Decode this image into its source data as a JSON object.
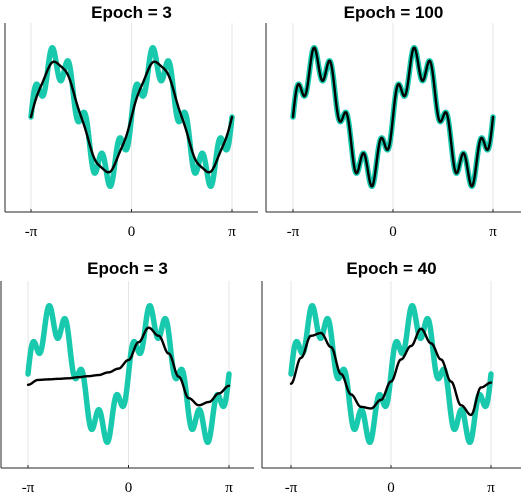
{
  "chart_data": [
    {
      "type": "line",
      "title": "Epoch = 3",
      "xlim": [
        -3.1416,
        3.1416
      ],
      "x_ticks": [
        -3.1416,
        0,
        3.1416
      ],
      "x_tick_labels": [
        "-π",
        "0",
        "π"
      ],
      "grid": "vertical lines at x ticks",
      "y_ticks_shown": false,
      "target": {
        "color": "#19c9ad",
        "terms": [
          {
            "amp": 1.0,
            "freq": 2
          },
          {
            "amp": 0.3,
            "freq": 12
          }
        ]
      },
      "model": {
        "color": "#000000",
        "terms": [
          {
            "amp": 1.0,
            "freq": 2
          },
          {
            "amp": 0.03,
            "freq": 12
          }
        ]
      },
      "x": [
        -3.1416,
        -2.8274,
        -2.5133,
        -2.1991,
        -1.885,
        -1.5708,
        -1.2566,
        -0.9425,
        -0.6283,
        -0.3142,
        0.0,
        0.3142,
        0.6283,
        0.9425,
        1.2566,
        1.5708,
        1.885,
        2.1991,
        2.5133,
        2.8274,
        3.1416
      ],
      "series": [
        {
          "values": [
            0.0,
            0.89,
            0.94,
            0.57,
            -0.55,
            -0.97,
            -0.56,
            0.56,
            0.97,
            0.56,
            0.0,
            0.59,
            0.97,
            0.56,
            -0.56,
            -0.97,
            -0.57,
            0.56,
            0.97,
            0.59,
            0.0
          ]
        },
        {
          "values": [
            0.0,
            0.59,
            0.95,
            0.95,
            0.59,
            0.0,
            -0.59,
            -0.95,
            -0.95,
            -0.59,
            0.0,
            0.59,
            0.95,
            0.95,
            0.59,
            0.0,
            -0.59,
            -0.95,
            -0.95,
            -0.59,
            0.0
          ]
        }
      ]
    },
    {
      "type": "line",
      "title": "Epoch = 100",
      "xlim": [
        -3.1416,
        3.1416
      ],
      "x_ticks": [
        -3.1416,
        0,
        3.1416
      ],
      "x_tick_labels": [
        "-π",
        "0",
        "π"
      ],
      "grid": "vertical lines at x ticks",
      "y_ticks_shown": false,
      "target": {
        "color": "#19c9ad",
        "terms": [
          {
            "amp": 1.0,
            "freq": 2
          },
          {
            "amp": 0.3,
            "freq": 12
          }
        ]
      },
      "model": {
        "color": "#000000",
        "terms": [
          {
            "amp": 1.0,
            "freq": 2
          },
          {
            "amp": 0.3,
            "freq": 12
          }
        ]
      },
      "x": [
        -3.1416,
        -2.8274,
        -2.5133,
        -2.1991,
        -1.885,
        -1.5708,
        -1.2566,
        -0.9425,
        -0.6283,
        -0.3142,
        0.0,
        0.3142,
        0.6283,
        0.9425,
        1.2566,
        1.5708,
        1.885,
        2.1991,
        2.5133,
        2.8274,
        3.1416
      ],
      "series": [
        {
          "values": [
            0.0,
            0.89,
            0.94,
            0.57,
            -0.55,
            -0.97,
            -0.56,
            0.56,
            0.97,
            0.56,
            0.0,
            0.59,
            0.97,
            0.56,
            -0.56,
            -0.97,
            -0.57,
            0.56,
            0.97,
            0.59,
            0.0
          ]
        },
        {
          "values": [
            0.0,
            0.89,
            0.94,
            0.57,
            -0.55,
            -0.97,
            -0.56,
            0.56,
            0.97,
            0.56,
            0.0,
            0.59,
            0.97,
            0.56,
            -0.56,
            -0.97,
            -0.57,
            0.56,
            0.97,
            0.59,
            0.0
          ]
        }
      ]
    },
    {
      "type": "line",
      "title": "Epoch = 3",
      "xlim": [
        -3.1416,
        3.1416
      ],
      "x_ticks": [
        -3.1416,
        0,
        3.1416
      ],
      "x_tick_labels": [
        "-π",
        "0",
        "π"
      ],
      "grid": "vertical lines at x ticks",
      "y_ticks_shown": false,
      "target": {
        "color": "#19c9ad",
        "terms": [
          {
            "amp": 1.0,
            "freq": 2
          },
          {
            "amp": 0.3,
            "freq": 12
          }
        ]
      },
      "x": [
        -3.1416,
        -2.8274,
        -2.5133,
        -2.1991,
        -1.885,
        -1.5708,
        -1.2566,
        -0.9425,
        -0.6283,
        -0.3142,
        0.0,
        0.3142,
        0.6283,
        0.9425,
        1.2566,
        1.5708,
        1.885,
        2.1991,
        2.5133,
        2.8274,
        3.1416
      ],
      "series": [
        {
          "values": [
            0.0,
            0.89,
            0.94,
            0.57,
            -0.55,
            -0.97,
            -0.56,
            0.56,
            0.97,
            0.56,
            0.0,
            0.59,
            0.97,
            0.56,
            -0.56,
            -0.97,
            -0.57,
            0.56,
            0.97,
            0.59,
            0.0
          ]
        },
        {
          "color": "#000000",
          "values": [
            -0.2,
            -0.11,
            -0.1,
            -0.09,
            -0.08,
            -0.06,
            -0.04,
            -0.02,
            0.03,
            0.1,
            0.26,
            0.59,
            0.86,
            0.71,
            0.38,
            -0.05,
            -0.45,
            -0.58,
            -0.52,
            -0.36,
            -0.22
          ]
        }
      ]
    },
    {
      "type": "line",
      "title": "Epoch = 40",
      "xlim": [
        -3.1416,
        3.1416
      ],
      "x_ticks": [
        -3.1416,
        0,
        3.1416
      ],
      "x_tick_labels": [
        "-π",
        "0",
        "π"
      ],
      "grid": "vertical lines at x ticks",
      "y_ticks_shown": false,
      "target": {
        "color": "#19c9ad",
        "terms": [
          {
            "amp": 1.0,
            "freq": 2
          },
          {
            "amp": 0.3,
            "freq": 12
          }
        ]
      },
      "x": [
        -3.1416,
        -2.8274,
        -2.5133,
        -2.1991,
        -1.885,
        -1.5708,
        -1.2566,
        -0.9425,
        -0.6283,
        -0.3142,
        0.0,
        0.3142,
        0.6283,
        0.9425,
        1.2566,
        1.5708,
        1.885,
        2.1991,
        2.5133,
        2.8274,
        3.1416
      ],
      "series": [
        {
          "values": [
            0.0,
            0.89,
            0.94,
            0.57,
            -0.55,
            -0.97,
            -0.56,
            0.56,
            0.97,
            0.56,
            0.0,
            0.59,
            0.97,
            0.56,
            -0.56,
            -0.97,
            -0.57,
            0.56,
            0.97,
            0.59,
            0.0
          ]
        },
        {
          "color": "#000000",
          "values": [
            -0.18,
            0.3,
            0.71,
            0.76,
            0.5,
            0.0,
            -0.38,
            -0.61,
            -0.64,
            -0.48,
            -0.14,
            0.27,
            0.52,
            0.84,
            0.57,
            0.27,
            -0.14,
            -0.58,
            -0.76,
            -0.25,
            -0.16
          ]
        }
      ]
    }
  ]
}
